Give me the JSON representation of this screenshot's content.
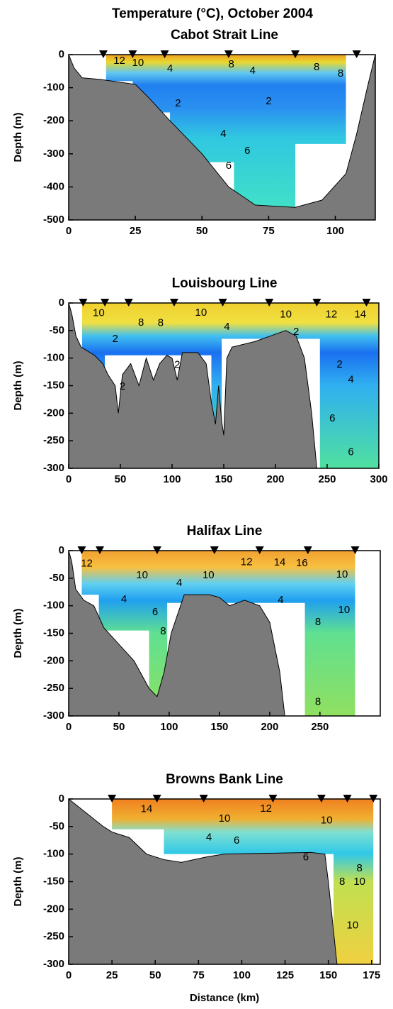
{
  "figure_title": "Temperature (°C), October 2004",
  "chart_data": [
    {
      "type": "section",
      "title": "Cabot Strait Line",
      "ylabel": "Depth (m)",
      "xlim": [
        0,
        115
      ],
      "ylim": [
        -500,
        0
      ],
      "xticks": [
        0,
        25,
        50,
        75,
        100
      ],
      "yticks": [
        -500,
        -400,
        -300,
        -200,
        -100,
        0
      ],
      "stations": [
        13,
        24,
        36,
        60,
        85,
        108
      ],
      "sampled_area": {
        "x": [
          14,
          104,
          104,
          85,
          85,
          62,
          62,
          38,
          38,
          24,
          24,
          14
        ],
        "y": [
          0,
          0,
          -270,
          -270,
          -460,
          -460,
          -325,
          -325,
          -175,
          -175,
          -80,
          -80
        ]
      },
      "bathymetry": {
        "x": [
          0,
          2,
          5,
          12,
          25,
          30,
          38,
          50,
          60,
          70,
          85,
          95,
          104,
          108,
          112,
          115
        ],
        "y": [
          0,
          -40,
          -70,
          -75,
          -90,
          -130,
          -200,
          -300,
          -400,
          -455,
          -462,
          -440,
          -360,
          -240,
          -100,
          0
        ]
      },
      "contour_labels": [
        {
          "text": "12",
          "x": 19,
          "y": -19
        },
        {
          "text": "10",
          "x": 26,
          "y": -26
        },
        {
          "text": "4",
          "x": 38,
          "y": -43
        },
        {
          "text": "8",
          "x": 61,
          "y": -30
        },
        {
          "text": "4",
          "x": 69,
          "y": -49
        },
        {
          "text": "8",
          "x": 93,
          "y": -39
        },
        {
          "text": "8",
          "x": 102,
          "y": -58
        },
        {
          "text": "2",
          "x": 41,
          "y": -148
        },
        {
          "text": "2",
          "x": 75,
          "y": -142
        },
        {
          "text": "4",
          "x": 58,
          "y": -240
        },
        {
          "text": "6",
          "x": 67,
          "y": -292
        },
        {
          "text": "6",
          "x": 60,
          "y": -337
        }
      ]
    },
    {
      "type": "section",
      "title": "Louisbourg Line",
      "ylabel": "Depth (m)",
      "xlim": [
        0,
        300
      ],
      "ylim": [
        -300,
        0
      ],
      "xticks": [
        0,
        50,
        100,
        150,
        200,
        250,
        300
      ],
      "yticks": [
        -300,
        -250,
        -200,
        -150,
        -100,
        -50,
        0
      ],
      "stations": [
        14,
        35,
        58,
        102,
        149,
        194,
        240,
        288
      ],
      "sampled_area": {
        "x": [
          13,
          300,
          300,
          243,
          243,
          148,
          148,
          138,
          138,
          35,
          35,
          13
        ],
        "y": [
          0,
          0,
          -300,
          -300,
          -65,
          -65,
          -220,
          -220,
          -95,
          -95,
          -130,
          -85
        ]
      },
      "bathymetry": {
        "x": [
          0,
          3,
          7,
          12,
          25,
          33,
          38,
          45,
          48,
          52,
          60,
          68,
          75,
          82,
          88,
          95,
          100,
          105,
          110,
          125,
          133,
          138,
          142,
          145,
          148,
          150,
          153,
          158,
          180,
          210,
          220,
          228,
          235,
          240
        ],
        "y": [
          0,
          -20,
          -60,
          -80,
          -95,
          -110,
          -130,
          -150,
          -200,
          -130,
          -110,
          -150,
          -100,
          -140,
          -110,
          -95,
          -100,
          -140,
          -90,
          -90,
          -110,
          -180,
          -220,
          -150,
          -215,
          -240,
          -100,
          -80,
          -70,
          -50,
          -60,
          -100,
          -200,
          -300
        ]
      },
      "contour_labels": [
        {
          "text": "10",
          "x": 29,
          "y": -19
        },
        {
          "text": "10",
          "x": 128,
          "y": -18
        },
        {
          "text": "10",
          "x": 210,
          "y": -21
        },
        {
          "text": "12",
          "x": 254,
          "y": -21
        },
        {
          "text": "14",
          "x": 282,
          "y": -21
        },
        {
          "text": "8",
          "x": 70,
          "y": -36
        },
        {
          "text": "8",
          "x": 89,
          "y": -37
        },
        {
          "text": "4",
          "x": 153,
          "y": -44
        },
        {
          "text": "2",
          "x": 45,
          "y": -66
        },
        {
          "text": "2",
          "x": 220,
          "y": -53
        },
        {
          "text": "2",
          "x": 105,
          "y": -113
        },
        {
          "text": "2",
          "x": 52,
          "y": -152
        },
        {
          "text": "2",
          "x": 262,
          "y": -112
        },
        {
          "text": "4",
          "x": 273,
          "y": -140
        },
        {
          "text": "6",
          "x": 255,
          "y": -210
        },
        {
          "text": "6",
          "x": 273,
          "y": -271
        }
      ]
    },
    {
      "type": "section",
      "title": "Halifax Line",
      "ylabel": "Depth (m)",
      "xlim": [
        0,
        310
      ],
      "ylim": [
        -300,
        0
      ],
      "xticks": [
        0,
        50,
        100,
        150,
        200,
        250
      ],
      "yticks": [
        -300,
        -250,
        -200,
        -150,
        -100,
        -50,
        0
      ],
      "stations": [
        13,
        31,
        88,
        145,
        190,
        238,
        285
      ],
      "sampled_area": {
        "x": [
          13,
          285,
          285,
          235,
          235,
          98,
          98,
          80,
          80,
          30,
          30,
          13
        ],
        "y": [
          0,
          0,
          -300,
          -300,
          -95,
          -95,
          -290,
          -290,
          -145,
          -145,
          -80,
          -80
        ]
      },
      "bathymetry": {
        "x": [
          0,
          3,
          7,
          15,
          25,
          35,
          50,
          65,
          80,
          88,
          95,
          102,
          115,
          140,
          150,
          160,
          175,
          190,
          200,
          210,
          215
        ],
        "y": [
          0,
          -20,
          -70,
          -90,
          -100,
          -140,
          -170,
          -200,
          -250,
          -265,
          -220,
          -150,
          -80,
          -80,
          -85,
          -100,
          -90,
          -100,
          -130,
          -220,
          -300
        ]
      },
      "contour_labels": [
        {
          "text": "12",
          "x": 18,
          "y": -24
        },
        {
          "text": "10",
          "x": 73,
          "y": -45
        },
        {
          "text": "10",
          "x": 139,
          "y": -45
        },
        {
          "text": "12",
          "x": 177,
          "y": -21
        },
        {
          "text": "14",
          "x": 210,
          "y": -22
        },
        {
          "text": "16",
          "x": 232,
          "y": -23
        },
        {
          "text": "10",
          "x": 272,
          "y": -44
        },
        {
          "text": "4",
          "x": 110,
          "y": -59
        },
        {
          "text": "4",
          "x": 55,
          "y": -89
        },
        {
          "text": "6",
          "x": 86,
          "y": -112
        },
        {
          "text": "8",
          "x": 94,
          "y": -147
        },
        {
          "text": "4",
          "x": 211,
          "y": -90
        },
        {
          "text": "10",
          "x": 274,
          "y": -108
        },
        {
          "text": "8",
          "x": 248,
          "y": -130
        },
        {
          "text": "8",
          "x": 248,
          "y": -275
        }
      ]
    },
    {
      "type": "section",
      "title": "Browns Bank Line",
      "ylabel": "Depth (m)",
      "xlabel": "Distance (km)",
      "xlim": [
        0,
        180
      ],
      "ylim": [
        -300,
        0
      ],
      "xticks": [
        0,
        25,
        50,
        75,
        100,
        125,
        150,
        175
      ],
      "yticks": [
        -300,
        -250,
        -200,
        -150,
        -100,
        -50,
        0
      ],
      "stations": [
        25,
        51,
        78,
        118,
        146,
        161,
        176
      ],
      "sampled_area": {
        "x": [
          25,
          176,
          176,
          153,
          153,
          55,
          55,
          25
        ],
        "y": [
          0,
          0,
          -300,
          -300,
          -100,
          -100,
          -55,
          -55
        ]
      },
      "bathymetry": {
        "x": [
          0,
          10,
          20,
          25,
          35,
          45,
          55,
          65,
          80,
          90,
          140,
          148,
          150,
          153,
          155
        ],
        "y": [
          0,
          -25,
          -50,
          -60,
          -70,
          -100,
          -110,
          -115,
          -105,
          -100,
          -97,
          -100,
          -150,
          -240,
          -300
        ]
      },
      "contour_labels": [
        {
          "text": "14",
          "x": 45,
          "y": -19
        },
        {
          "text": "10",
          "x": 90,
          "y": -36
        },
        {
          "text": "12",
          "x": 114,
          "y": -18
        },
        {
          "text": "10",
          "x": 149,
          "y": -39
        },
        {
          "text": "4",
          "x": 81,
          "y": -70
        },
        {
          "text": "6",
          "x": 97,
          "y": -76
        },
        {
          "text": "6",
          "x": 137,
          "y": -106
        },
        {
          "text": "8",
          "x": 168,
          "y": -126
        },
        {
          "text": "8",
          "x": 158,
          "y": -151
        },
        {
          "text": "10",
          "x": 168,
          "y": -151
        },
        {
          "text": "10",
          "x": 164,
          "y": -230
        }
      ]
    }
  ]
}
